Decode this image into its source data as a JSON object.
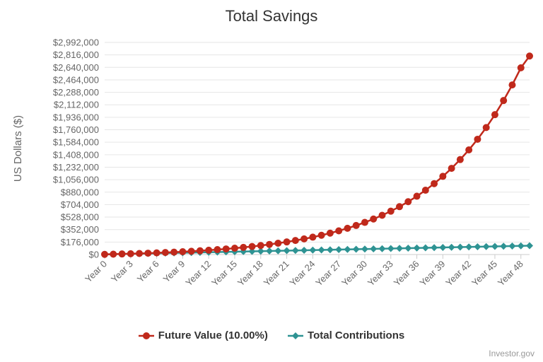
{
  "chart_data": {
    "type": "line",
    "title": "Total Savings",
    "ylabel": "US Dollars ($)",
    "xlabel": "",
    "ylim": [
      0,
      2992000
    ],
    "y_ticks": [
      "$0",
      "$176,000",
      "$352,000",
      "$528,000",
      "$704,000",
      "$880,000",
      "$1,056,000",
      "$1,232,000",
      "$1,408,000",
      "$1,584,000",
      "$1,760,000",
      "$1,936,000",
      "$2,112,000",
      "$2,288,000",
      "$2,464,000",
      "$2,640,000",
      "$2,816,000",
      "$2,992,000"
    ],
    "x_labels": [
      "Year 0",
      "Year 3",
      "Year 6",
      "Year 9",
      "Year 12",
      "Year 15",
      "Year 18",
      "Year 21",
      "Year 24",
      "Year 27",
      "Year 30",
      "Year 33",
      "Year 36",
      "Year 39",
      "Year 42",
      "Year 45",
      "Year 48"
    ],
    "grid": true,
    "legend_position": "bottom",
    "series": [
      {
        "name": "Future Value (10.00%)",
        "color": "#c0291b",
        "marker": "circle",
        "values": [
          2500,
          5150,
          8165,
          11482,
          15130,
          19143,
          23557,
          28413,
          33754,
          39629,
          46092,
          53202,
          61022,
          69624,
          79087,
          89495,
          100945,
          113539,
          127393,
          142633,
          159396,
          177836,
          198119,
          220431,
          244974,
          271972,
          301669,
          334336,
          370269,
          409796,
          453276,
          501103,
          553714,
          611585,
          675244,
          745268,
          822295,
          907025,
          1000227,
          1102750,
          1215525,
          1339578,
          1476036,
          1626139,
          1791253,
          1972879,
          2172667,
          2392433,
          2634177,
          2800000
        ]
      },
      {
        "name": "Total Contributions",
        "color": "#2e9393",
        "marker": "diamond",
        "values": [
          2500,
          5000,
          7500,
          10000,
          12500,
          15000,
          17500,
          20000,
          22500,
          25000,
          27500,
          30000,
          32500,
          35000,
          37500,
          40000,
          42500,
          45000,
          47500,
          50000,
          52500,
          55000,
          57500,
          60000,
          62500,
          65000,
          67500,
          70000,
          72500,
          75000,
          77500,
          80000,
          82500,
          85000,
          87500,
          90000,
          92500,
          95000,
          97500,
          100000,
          102500,
          105000,
          107500,
          110000,
          112500,
          115000,
          117500,
          120000,
          122500,
          125000
        ]
      }
    ]
  },
  "credits": "Investor.gov"
}
